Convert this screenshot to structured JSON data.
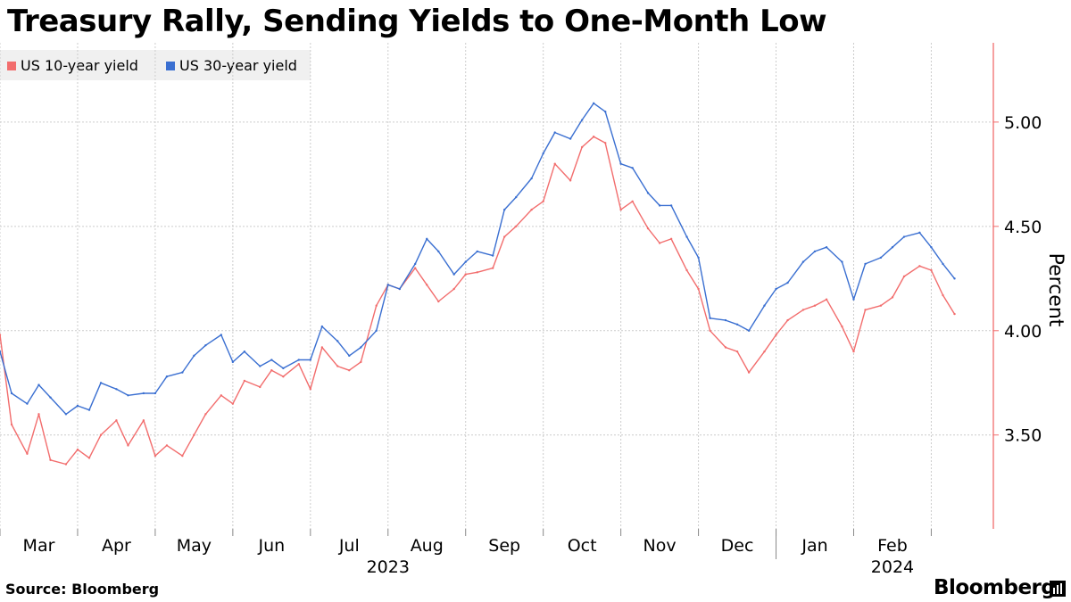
{
  "chart_data": {
    "type": "line",
    "title": "Treasury Rally, Sending Yields to One-Month Low",
    "ylabel": "Percent",
    "ylim": [
      3.05,
      5.38
    ],
    "yticks": [
      3.5,
      4.0,
      4.5,
      5.0
    ],
    "ytick_labels": [
      "3.50",
      "4.00",
      "4.50",
      "5.00"
    ],
    "xlim": [
      0,
      12.8
    ],
    "x_units": "months since 1 Mar 2023",
    "month_labels": [
      {
        "x": 0.5,
        "label": "Mar"
      },
      {
        "x": 1.5,
        "label": "Apr"
      },
      {
        "x": 2.5,
        "label": "May"
      },
      {
        "x": 3.5,
        "label": "Jun"
      },
      {
        "x": 4.5,
        "label": "Jul"
      },
      {
        "x": 5.5,
        "label": "Aug"
      },
      {
        "x": 6.5,
        "label": "Sep"
      },
      {
        "x": 7.5,
        "label": "Oct"
      },
      {
        "x": 8.5,
        "label": "Nov"
      },
      {
        "x": 9.5,
        "label": "Dec"
      },
      {
        "x": 10.5,
        "label": "Jan"
      },
      {
        "x": 11.5,
        "label": "Feb"
      }
    ],
    "year_labels": [
      {
        "x": 5.0,
        "label": "2023"
      },
      {
        "x": 11.5,
        "label": "2024"
      }
    ],
    "series": [
      {
        "name": "US 10-year yield",
        "color": "#f26d6d",
        "x": [
          0,
          0.15,
          0.35,
          0.5,
          0.65,
          0.85,
          1.0,
          1.15,
          1.3,
          1.5,
          1.65,
          1.85,
          2.0,
          2.15,
          2.35,
          2.5,
          2.65,
          2.85,
          3.0,
          3.15,
          3.35,
          3.5,
          3.65,
          3.85,
          4.0,
          4.15,
          4.35,
          4.5,
          4.65,
          4.85,
          5.0,
          5.15,
          5.35,
          5.5,
          5.65,
          5.85,
          6.0,
          6.15,
          6.35,
          6.5,
          6.65,
          6.85,
          7.0,
          7.15,
          7.35,
          7.5,
          7.65,
          7.8,
          8.0,
          8.15,
          8.35,
          8.5,
          8.65,
          8.85,
          9.0,
          9.15,
          9.35,
          9.5,
          9.65,
          9.85,
          10.0,
          10.15,
          10.35,
          10.5,
          10.65,
          10.85,
          11.0,
          11.15,
          11.35,
          11.5,
          11.65,
          11.85,
          12.0,
          12.15,
          12.3
        ],
        "values": [
          3.98,
          3.55,
          3.41,
          3.6,
          3.38,
          3.36,
          3.43,
          3.39,
          3.5,
          3.57,
          3.45,
          3.57,
          3.4,
          3.45,
          3.4,
          3.5,
          3.6,
          3.69,
          3.65,
          3.76,
          3.73,
          3.81,
          3.78,
          3.84,
          3.72,
          3.92,
          3.83,
          3.81,
          3.85,
          4.12,
          4.22,
          4.2,
          4.3,
          4.22,
          4.14,
          4.2,
          4.27,
          4.28,
          4.3,
          4.45,
          4.5,
          4.58,
          4.62,
          4.8,
          4.72,
          4.88,
          4.93,
          4.9,
          4.58,
          4.62,
          4.49,
          4.42,
          4.44,
          4.29,
          4.2,
          4.0,
          3.92,
          3.9,
          3.8,
          3.9,
          3.98,
          4.05,
          4.1,
          4.12,
          4.15,
          4.02,
          3.9,
          4.1,
          4.12,
          4.16,
          4.26,
          4.31,
          4.29,
          4.17,
          4.08
        ]
      },
      {
        "name": "US 30-year yield",
        "color": "#3a6fd1",
        "x": [
          0,
          0.15,
          0.35,
          0.5,
          0.65,
          0.85,
          1.0,
          1.15,
          1.3,
          1.5,
          1.65,
          1.85,
          2.0,
          2.15,
          2.35,
          2.5,
          2.65,
          2.85,
          3.0,
          3.15,
          3.35,
          3.5,
          3.65,
          3.85,
          4.0,
          4.15,
          4.35,
          4.5,
          4.65,
          4.85,
          5.0,
          5.15,
          5.35,
          5.5,
          5.65,
          5.85,
          6.0,
          6.15,
          6.35,
          6.5,
          6.65,
          6.85,
          7.0,
          7.15,
          7.35,
          7.5,
          7.65,
          7.8,
          8.0,
          8.15,
          8.35,
          8.5,
          8.65,
          8.85,
          9.0,
          9.15,
          9.35,
          9.5,
          9.65,
          9.85,
          10.0,
          10.15,
          10.35,
          10.5,
          10.65,
          10.85,
          11.0,
          11.15,
          11.35,
          11.5,
          11.65,
          11.85,
          12.0,
          12.15,
          12.3
        ],
        "values": [
          3.9,
          3.7,
          3.65,
          3.74,
          3.68,
          3.6,
          3.64,
          3.62,
          3.75,
          3.72,
          3.69,
          3.7,
          3.7,
          3.78,
          3.8,
          3.88,
          3.93,
          3.98,
          3.85,
          3.9,
          3.83,
          3.86,
          3.82,
          3.86,
          3.86,
          4.02,
          3.95,
          3.88,
          3.92,
          4.0,
          4.22,
          4.2,
          4.32,
          4.44,
          4.38,
          4.27,
          4.33,
          4.38,
          4.36,
          4.58,
          4.64,
          4.73,
          4.85,
          4.95,
          4.92,
          5.01,
          5.09,
          5.05,
          4.8,
          4.78,
          4.66,
          4.6,
          4.6,
          4.45,
          4.35,
          4.06,
          4.05,
          4.03,
          4.0,
          4.12,
          4.2,
          4.23,
          4.33,
          4.38,
          4.4,
          4.33,
          4.15,
          4.32,
          4.35,
          4.4,
          4.45,
          4.47,
          4.4,
          4.32,
          4.25
        ]
      }
    ]
  },
  "legend": {
    "item_1": "US 10-year yield",
    "item_2": "US 30-year yield"
  },
  "footer": {
    "source": "Source: Bloomberg",
    "brand": "Bloomberg"
  }
}
